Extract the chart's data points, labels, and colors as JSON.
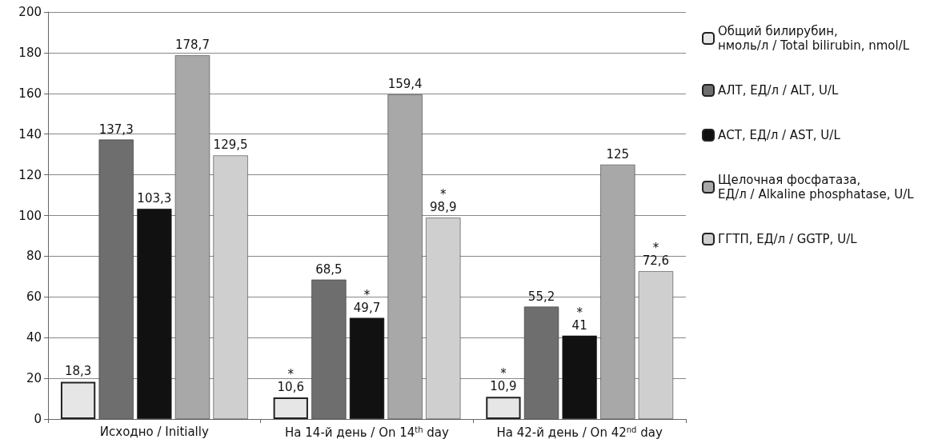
{
  "chart_data": {
    "type": "bar",
    "categories": [
      "Исходно / Initially",
      "На 14-й день / On 14$^{th}$ day",
      "На 42-й день / On 42$^{nd}$ day"
    ],
    "series": [
      {
        "name": "Общий билирубин, нмоль/л / Total bilirubin, nmol/L",
        "color": "#e6e6e6",
        "values": [
          18.3,
          10.6,
          10.9
        ],
        "value_labels": [
          "18,3",
          "*\n10,6",
          "*\n10,9"
        ]
      },
      {
        "name": "АЛТ, ЕД/л / ALT, U/L",
        "color": "#6e6e6e",
        "values": [
          137.3,
          68.5,
          55.2
        ],
        "value_labels": [
          "137,3",
          "68,5",
          "55,2"
        ]
      },
      {
        "name": "АСТ, ЕД/л / AST, U/L",
        "color": "#111111",
        "values": [
          103.3,
          49.7,
          41
        ],
        "value_labels": [
          "103,3",
          "*\n49,7",
          "*\n41"
        ]
      },
      {
        "name": "Щелочная фосфатаза, ЕД/л / Alkaline phosphatase, U/L",
        "color": "#a8a8a8",
        "values": [
          178.7,
          159.4,
          125
        ],
        "value_labels": [
          "178,7",
          "159,4",
          "125"
        ]
      },
      {
        "name": "ГГТП, ЕД/л / GGTP, U/L",
        "color": "#cfcfcf",
        "values": [
          129.5,
          98.9,
          72.6
        ],
        "value_labels": [
          "129,5",
          "*\n98,9",
          "*\n72,6"
        ]
      }
    ],
    "ylim": [
      0,
      200
    ],
    "yticks": [
      0,
      20,
      40,
      60,
      80,
      100,
      120,
      140,
      160,
      180,
      200
    ],
    "grid": "y",
    "legend": "right"
  }
}
